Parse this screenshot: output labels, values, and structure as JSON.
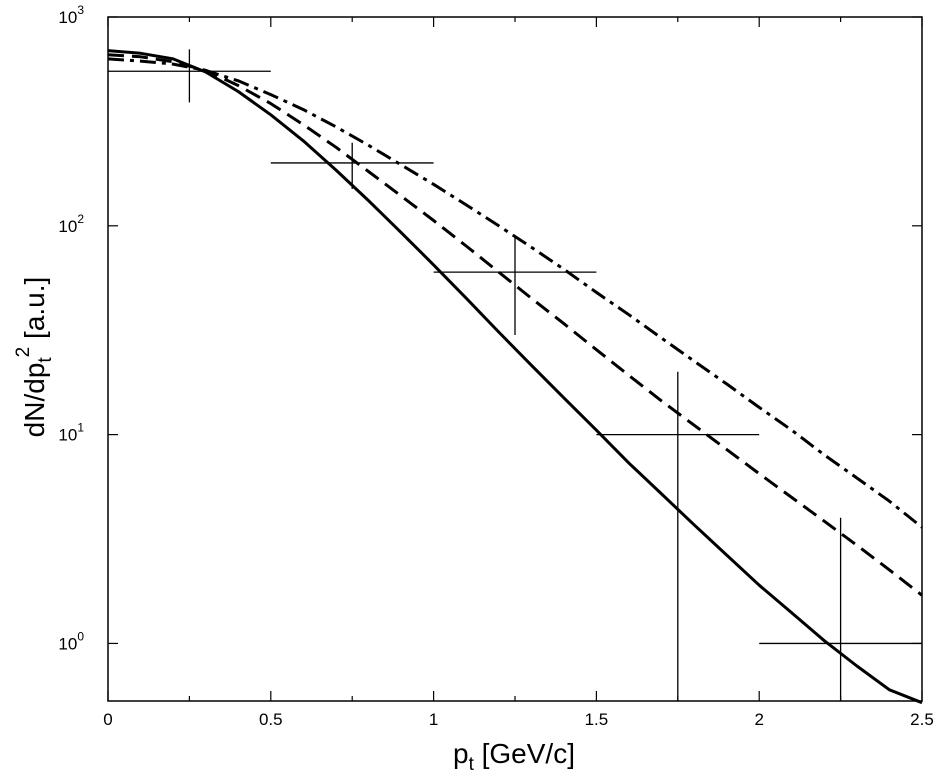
{
  "chart_data": {
    "type": "line",
    "title": "",
    "xlabel": {
      "main": "p",
      "sub": "t",
      "rest": " [GeV/c]"
    },
    "ylabel": {
      "main": "dN/dp",
      "sub": "t",
      "sup": "2",
      "rest": " [a.u.]"
    },
    "xlim": [
      0,
      2.5
    ],
    "ylim": [
      0.53,
      1000
    ],
    "yscale": "log",
    "grid": false,
    "x_ticks": [
      "0",
      "0.5",
      "1",
      "1.5",
      "2",
      "2.5"
    ],
    "y_ticks": [
      {
        "base": "10",
        "exp": "0",
        "value": 1
      },
      {
        "base": "10",
        "exp": "1",
        "value": 10
      },
      {
        "base": "10",
        "exp": "2",
        "value": 100
      },
      {
        "base": "10",
        "exp": "3",
        "value": 1000
      }
    ],
    "series": [
      {
        "style": "solid",
        "x": [
          0,
          0.1,
          0.2,
          0.3,
          0.4,
          0.5,
          0.6,
          0.7,
          0.8,
          0.9,
          1.0,
          1.1,
          1.2,
          1.3,
          1.4,
          1.5,
          1.6,
          1.7,
          1.8,
          1.9,
          2.0,
          2.1,
          2.2,
          2.3,
          2.4,
          2.5
        ],
        "y": [
          690,
          670,
          630,
          545,
          440,
          340,
          255,
          185,
          132,
          93,
          65,
          45,
          31,
          21.5,
          15,
          10.5,
          7.3,
          5.2,
          3.7,
          2.65,
          1.9,
          1.4,
          1.03,
          0.78,
          0.6,
          0.52
        ]
      },
      {
        "style": "dashed",
        "x": [
          0,
          0.1,
          0.2,
          0.3,
          0.4,
          0.5,
          0.6,
          0.7,
          0.8,
          0.9,
          1.0,
          1.1,
          1.2,
          1.3,
          1.4,
          1.5,
          1.6,
          1.7,
          1.8,
          1.9,
          2.0,
          2.1,
          2.2,
          2.3,
          2.4,
          2.5
        ],
        "y": [
          660,
          645,
          610,
          555,
          470,
          385,
          305,
          238,
          182,
          139,
          106,
          80,
          60,
          45,
          34,
          25.5,
          19.2,
          14.5,
          11.1,
          8.5,
          6.5,
          5.0,
          3.85,
          2.95,
          2.25,
          1.7
        ]
      },
      {
        "style": "dashdot",
        "x": [
          0,
          0.1,
          0.2,
          0.3,
          0.4,
          0.5,
          0.6,
          0.7,
          0.8,
          0.9,
          1.0,
          1.1,
          1.2,
          1.3,
          1.4,
          1.5,
          1.6,
          1.7,
          1.8,
          1.9,
          2.0,
          2.1,
          2.2,
          2.3,
          2.4,
          2.5
        ],
        "y": [
          630,
          615,
          595,
          555,
          495,
          425,
          360,
          298,
          243,
          196,
          158,
          126,
          100,
          79,
          62,
          48,
          37.5,
          29,
          22.5,
          17.5,
          13.5,
          10.5,
          8.0,
          6.2,
          4.8,
          3.6
        ]
      }
    ],
    "data_points": [
      {
        "x": 0.25,
        "x_err": 0.25,
        "y": 550,
        "y_low": 390,
        "y_high": 700
      },
      {
        "x": 0.75,
        "x_err": 0.25,
        "y": 200,
        "y_low": 150,
        "y_high": 250
      },
      {
        "x": 1.25,
        "x_err": 0.25,
        "y": 60,
        "y_low": 30,
        "y_high": 90
      },
      {
        "x": 1.75,
        "x_err": 0.25,
        "y": 10,
        "y_low": 0.53,
        "y_high": 20
      },
      {
        "x": 2.25,
        "x_err": 0.25,
        "y": 1.0,
        "y_low": 0.53,
        "y_high": 4
      }
    ]
  }
}
